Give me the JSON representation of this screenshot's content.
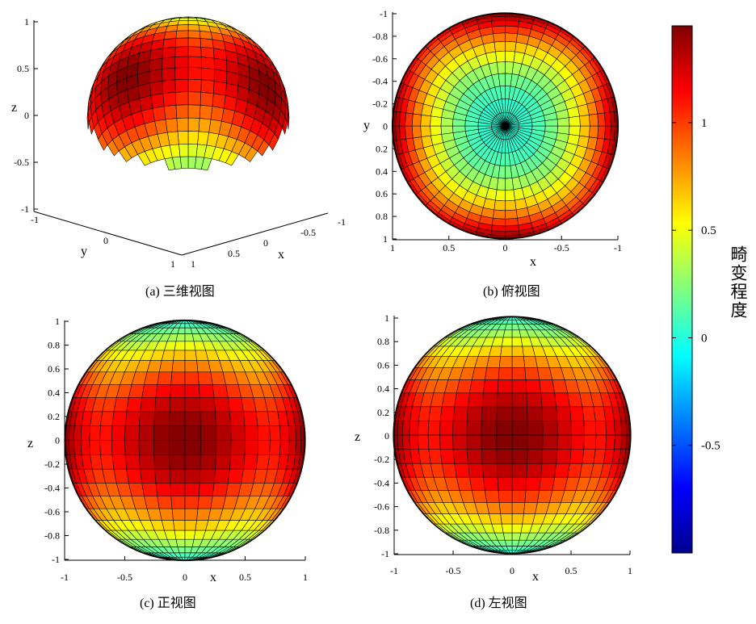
{
  "panels": [
    {
      "id": "a",
      "caption": "(a)  三维视图",
      "view": "3d",
      "zlabel": "z",
      "xlabel": "x",
      "ylabel": "y",
      "z_ticks": [
        "1",
        "0.5",
        "0",
        "-0.5",
        "-1"
      ],
      "y_ticks": [
        "-1",
        "0",
        "1"
      ],
      "x_ticks": [
        "-1",
        "-0.5",
        "0",
        "0.5",
        "1"
      ]
    },
    {
      "id": "b",
      "caption": "(b)  俯视图",
      "view": "top",
      "xlabel": "x",
      "ylabel": "y",
      "x_ticks": [
        "1",
        "0.5",
        "0",
        "-0.5",
        "-1"
      ],
      "y_ticks": [
        "-1",
        "-0.8",
        "-0.6",
        "-0.4",
        "-0.2",
        "0",
        "0.2",
        "0.4",
        "0.6",
        "0.8",
        "1"
      ]
    },
    {
      "id": "c",
      "caption": "(c)  正视图",
      "view": "front",
      "xlabel": "x",
      "zlabel": "z",
      "x_ticks": [
        "-1",
        "-0.5",
        "0",
        "0.5",
        "1"
      ],
      "z_ticks": [
        "1",
        "0.8",
        "0.6",
        "0.4",
        "0.2",
        "0",
        "-0.2",
        "-0.4",
        "-0.6",
        "-0.8",
        "-1"
      ]
    },
    {
      "id": "d",
      "caption": "(d)  左视图",
      "view": "left",
      "xlabel": "x",
      "zlabel": "z",
      "x_ticks": [
        "-1",
        "-0.5",
        "0",
        "0.5",
        "1"
      ],
      "z_ticks": [
        "1",
        "0.8",
        "0.6",
        "0.4",
        "0.2",
        "0",
        "-0.2",
        "-0.4",
        "-0.6",
        "-0.8",
        "-1"
      ]
    }
  ],
  "colorbar": {
    "label": "畸变程度",
    "ticks": [
      "1",
      "0.5",
      "0",
      "-0.5"
    ],
    "tick_values": [
      1,
      0.5,
      0,
      -0.5
    ],
    "range": [
      -1,
      1.45
    ],
    "colormap": "jet"
  },
  "chart_data": {
    "type": "heatmap",
    "description_visible": "distortion magnitude mapped on a unit sphere, shown in 3D, top, front and left views",
    "axis_range": [
      -1,
      1
    ],
    "value_range": [
      -1,
      1.45
    ],
    "peak_value": 1.45,
    "peak_locations": [
      "sphere equator facing the viewer (front view center)",
      "sphere equator facing the viewer (left view center)"
    ],
    "pole_value": 0,
    "colormap": "jet"
  }
}
